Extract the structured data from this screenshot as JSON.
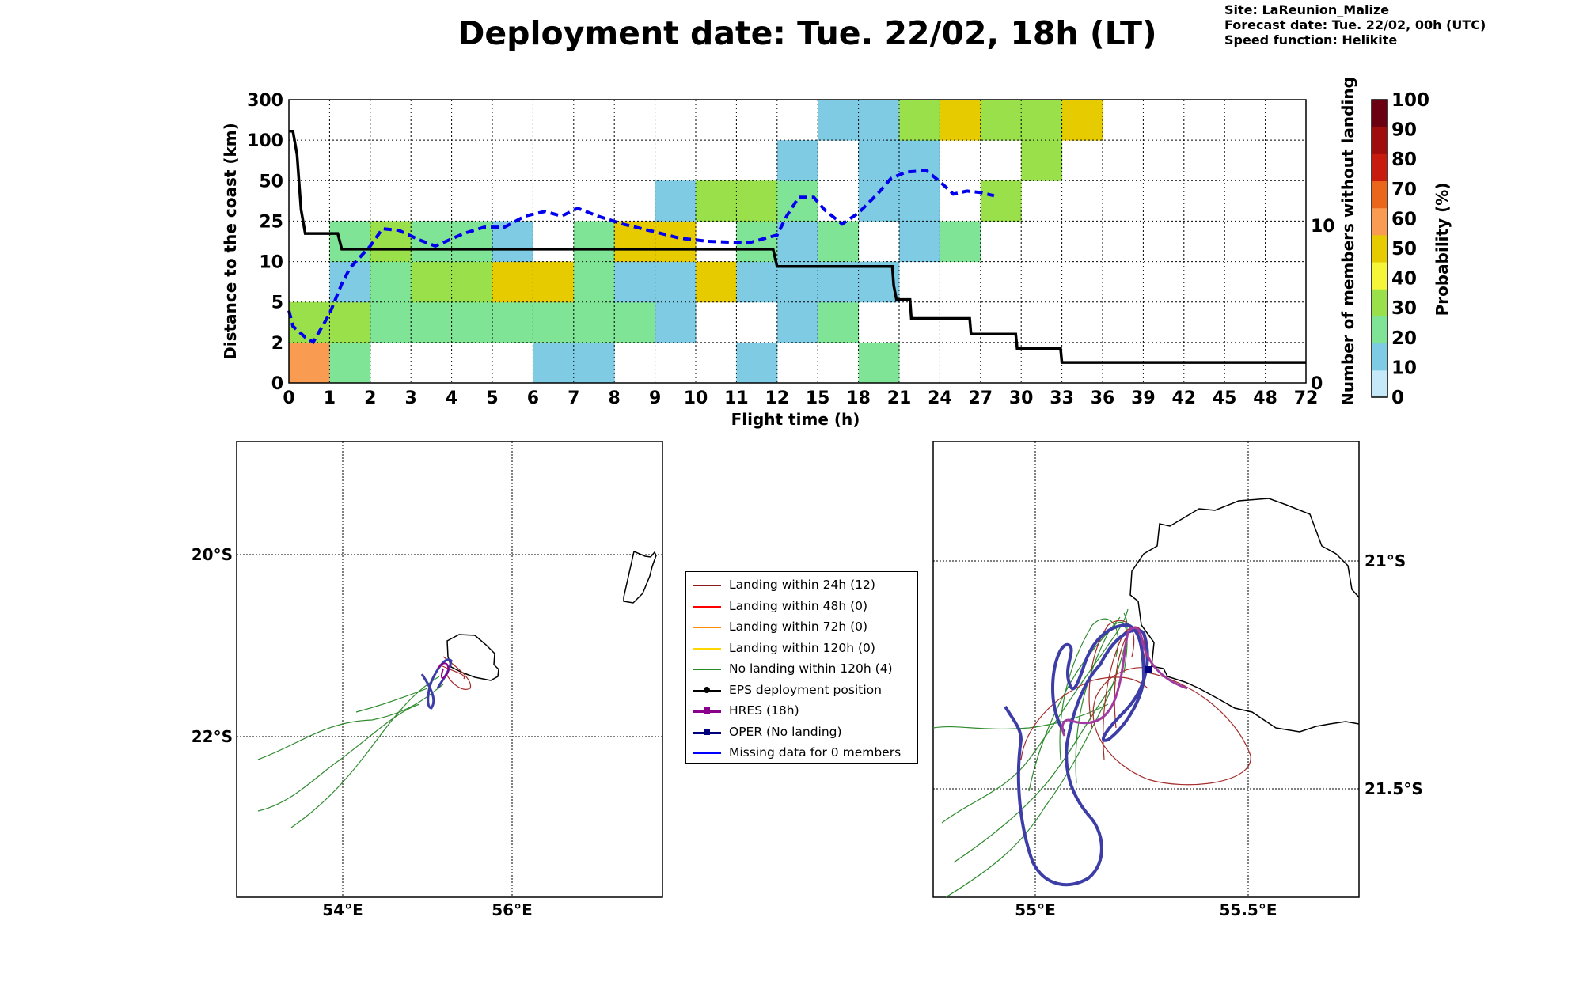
{
  "header": {
    "title": "Deployment date: Tue. 22/02, 18h (LT)",
    "site": "Site: LaReunion_Malize",
    "forecast": "Forecast date: Tue. 22/02, 00h (UTC)",
    "speed": "Speed function: Helikite"
  },
  "chart_data": [
    {
      "type": "heatmap",
      "xlabel": "Flight time (h)",
      "ylabel": "Distance to the coast (km)",
      "y2label": "Number of members without landing",
      "x_ticks": [
        "0",
        "1",
        "2",
        "3",
        "4",
        "5",
        "6",
        "7",
        "8",
        "9",
        "10",
        "11",
        "12",
        "15",
        "18",
        "21",
        "24",
        "27",
        "30",
        "33",
        "36",
        "39",
        "42",
        "45",
        "48",
        "72"
      ],
      "y_ticks": [
        "0",
        "2",
        "5",
        "10",
        "25",
        "50",
        "100",
        "300"
      ],
      "y2_ticks": [
        "0",
        "10"
      ],
      "y2lim": [
        0,
        18
      ],
      "colorbar": {
        "label": "Probability (%)",
        "ticks": [
          "0",
          "10",
          "20",
          "30",
          "40",
          "50",
          "60",
          "70",
          "80",
          "90",
          "100"
        ],
        "colors": [
          "#c6e9fa",
          "#7ecbe3",
          "#7fe496",
          "#99e04a",
          "#f5f53a",
          "#e6cb00",
          "#f99b50",
          "#e9661a",
          "#c71b10",
          "#a00d0d",
          "#6b0013"
        ]
      },
      "cells": [
        {
          "x": 0,
          "y": 0,
          "p": 60
        },
        {
          "x": 1,
          "y": 0,
          "p": 20
        },
        {
          "x": 6,
          "y": 0,
          "p": 10
        },
        {
          "x": 7,
          "y": 0,
          "p": 10
        },
        {
          "x": 11,
          "y": 0,
          "p": 10
        },
        {
          "x": 14,
          "y": 0,
          "p": 20
        },
        {
          "x": 0,
          "y": 1,
          "p": 30
        },
        {
          "x": 1,
          "y": 1,
          "p": 30
        },
        {
          "x": 2,
          "y": 1,
          "p": 20
        },
        {
          "x": 3,
          "y": 1,
          "p": 20
        },
        {
          "x": 4,
          "y": 1,
          "p": 20
        },
        {
          "x": 5,
          "y": 1,
          "p": 20
        },
        {
          "x": 6,
          "y": 1,
          "p": 20
        },
        {
          "x": 7,
          "y": 1,
          "p": 20
        },
        {
          "x": 8,
          "y": 1,
          "p": 20
        },
        {
          "x": 9,
          "y": 1,
          "p": 10
        },
        {
          "x": 12,
          "y": 1,
          "p": 10
        },
        {
          "x": 13,
          "y": 1,
          "p": 20
        },
        {
          "x": 1,
          "y": 2,
          "p": 10
        },
        {
          "x": 2,
          "y": 2,
          "p": 20
        },
        {
          "x": 3,
          "y": 2,
          "p": 30
        },
        {
          "x": 4,
          "y": 2,
          "p": 30
        },
        {
          "x": 5,
          "y": 2,
          "p": 50
        },
        {
          "x": 6,
          "y": 2,
          "p": 50
        },
        {
          "x": 7,
          "y": 2,
          "p": 20
        },
        {
          "x": 8,
          "y": 2,
          "p": 10
        },
        {
          "x": 9,
          "y": 2,
          "p": 10
        },
        {
          "x": 10,
          "y": 2,
          "p": 50
        },
        {
          "x": 11,
          "y": 2,
          "p": 10
        },
        {
          "x": 12,
          "y": 2,
          "p": 10
        },
        {
          "x": 13,
          "y": 2,
          "p": 10
        },
        {
          "x": 14,
          "y": 2,
          "p": 10
        },
        {
          "x": 1,
          "y": 3,
          "p": 20
        },
        {
          "x": 2,
          "y": 3,
          "p": 30
        },
        {
          "x": 3,
          "y": 3,
          "p": 20
        },
        {
          "x": 4,
          "y": 3,
          "p": 20
        },
        {
          "x": 5,
          "y": 3,
          "p": 10
        },
        {
          "x": 7,
          "y": 3,
          "p": 20
        },
        {
          "x": 8,
          "y": 3,
          "p": 50
        },
        {
          "x": 9,
          "y": 3,
          "p": 50
        },
        {
          "x": 11,
          "y": 3,
          "p": 20
        },
        {
          "x": 12,
          "y": 3,
          "p": 10
        },
        {
          "x": 13,
          "y": 3,
          "p": 20
        },
        {
          "x": 15,
          "y": 3,
          "p": 10
        },
        {
          "x": 16,
          "y": 3,
          "p": 20
        },
        {
          "x": 9,
          "y": 4,
          "p": 10
        },
        {
          "x": 10,
          "y": 4,
          "p": 30
        },
        {
          "x": 11,
          "y": 4,
          "p": 30
        },
        {
          "x": 12,
          "y": 4,
          "p": 20
        },
        {
          "x": 14,
          "y": 4,
          "p": 10
        },
        {
          "x": 15,
          "y": 4,
          "p": 10
        },
        {
          "x": 17,
          "y": 4,
          "p": 30
        },
        {
          "x": 12,
          "y": 5,
          "p": 10
        },
        {
          "x": 14,
          "y": 5,
          "p": 10
        },
        {
          "x": 15,
          "y": 5,
          "p": 10
        },
        {
          "x": 18,
          "y": 5,
          "p": 30
        },
        {
          "x": 13,
          "y": 6,
          "p": 10
        },
        {
          "x": 14,
          "y": 6,
          "p": 10
        },
        {
          "x": 15,
          "y": 6,
          "p": 30
        },
        {
          "x": 16,
          "y": 6,
          "p": 50
        },
        {
          "x": 17,
          "y": 6,
          "p": 30
        },
        {
          "x": 18,
          "y": 6,
          "p": 30
        },
        {
          "x": 19,
          "y": 6,
          "p": 50
        }
      ],
      "series": [
        {
          "name": "members without landing",
          "style": "solid",
          "color": "#000000",
          "points": [
            [
              0,
              16.0
            ],
            [
              0.1,
              16.0
            ],
            [
              0.2,
              14.5
            ],
            [
              0.3,
              11.0
            ],
            [
              0.4,
              9.5
            ],
            [
              1.2,
              9.5
            ],
            [
              1.3,
              8.5
            ],
            [
              11.9,
              8.5
            ],
            [
              12.0,
              7.4
            ],
            [
              20.5,
              7.4
            ],
            [
              20.6,
              6.2
            ],
            [
              20.8,
              5.3
            ],
            [
              21.8,
              5.3
            ],
            [
              21.9,
              4.1
            ],
            [
              26.2,
              4.1
            ],
            [
              26.3,
              3.1
            ],
            [
              29.6,
              3.1
            ],
            [
              29.7,
              2.2
            ],
            [
              32.9,
              2.2
            ],
            [
              33.0,
              1.3
            ],
            [
              72,
              1.3
            ]
          ]
        },
        {
          "name": "",
          "style": "dashed",
          "color": "#0000ee",
          "points": [
            [
              0,
              4.6
            ],
            [
              0.1,
              3.6
            ],
            [
              0.4,
              2.9
            ],
            [
              0.6,
              2.6
            ],
            [
              1.0,
              4.4
            ],
            [
              1.3,
              6.3
            ],
            [
              1.5,
              7.3
            ],
            [
              2.0,
              8.7
            ],
            [
              2.3,
              9.8
            ],
            [
              2.7,
              9.7
            ],
            [
              3.2,
              9.1
            ],
            [
              3.6,
              8.7
            ],
            [
              4.3,
              9.5
            ],
            [
              4.8,
              9.9
            ],
            [
              5.3,
              9.9
            ],
            [
              5.8,
              10.6
            ],
            [
              6.3,
              10.9
            ],
            [
              6.7,
              10.6
            ],
            [
              7.1,
              11.1
            ],
            [
              7.6,
              10.6
            ],
            [
              8.2,
              10.1
            ],
            [
              9.0,
              9.6
            ],
            [
              9.6,
              9.2
            ],
            [
              10.3,
              9.0
            ],
            [
              11.3,
              8.9
            ],
            [
              12.0,
              9.4
            ],
            [
              12.7,
              10.6
            ],
            [
              13.6,
              11.8
            ],
            [
              14.7,
              11.8
            ],
            [
              15.5,
              11.0
            ],
            [
              16.8,
              10.1
            ],
            [
              18.0,
              10.8
            ],
            [
              19.5,
              12.1
            ],
            [
              20.4,
              13.0
            ],
            [
              21.5,
              13.4
            ],
            [
              23.0,
              13.5
            ],
            [
              24.0,
              12.8
            ],
            [
              25.0,
              12.0
            ],
            [
              26.0,
              12.2
            ],
            [
              27.0,
              12.1
            ],
            [
              28.0,
              11.9
            ]
          ]
        }
      ]
    },
    {
      "type": "map",
      "x_ticks": [
        "54°E",
        "56°E"
      ],
      "y_ticks": [
        "20°S",
        "22°S"
      ]
    },
    {
      "type": "map",
      "x_ticks": [
        "55°E",
        "55.5°E"
      ],
      "y_ticks": [
        "21°S",
        "21.5°S"
      ]
    }
  ],
  "legend": [
    {
      "label": "Landing within 24h (12)",
      "color": "#8b1a1a",
      "marker": "none"
    },
    {
      "label": "Landing within 48h (0)",
      "color": "#ff0000",
      "marker": "none"
    },
    {
      "label": "Landing within 72h (0)",
      "color": "#ff8c00",
      "marker": "none"
    },
    {
      "label": "Landing within 120h (0)",
      "color": "#ffd700",
      "marker": "none"
    },
    {
      "label": "No landing within 120h (4)",
      "color": "#228b22",
      "marker": "none"
    },
    {
      "label": "EPS deployment position",
      "color": "#000000",
      "marker": "circle"
    },
    {
      "label": "HRES (18h)",
      "color": "#8b008b",
      "marker": "square"
    },
    {
      "label": "OPER (No landing)",
      "color": "#00007f",
      "marker": "square"
    },
    {
      "label": "Missing data for 0 members",
      "color": "#0000ff",
      "marker": "none"
    }
  ]
}
